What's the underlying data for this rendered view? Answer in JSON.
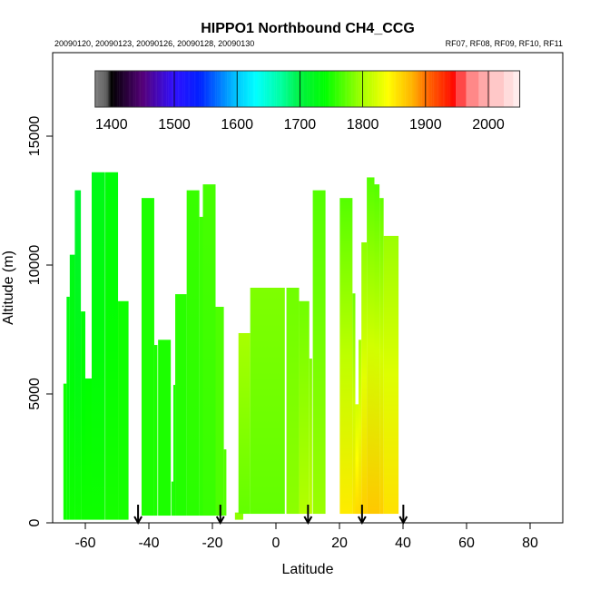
{
  "chart_data": {
    "type": "heatmap",
    "title": "HIPPO1 Northbound CH4_CCG",
    "subtitle_left": "20090120, 20090123, 20090126, 20090128, 20090130",
    "subtitle_right": "RF07, RF08, RF09, RF10, RF11",
    "xlabel": "Latitude",
    "ylabel": "Altitude (m)",
    "xlim": [
      -70,
      90
    ],
    "ylim": [
      0,
      18200
    ],
    "x_ticks": [
      "-60",
      "-40",
      "-20",
      "0",
      "20",
      "40",
      "60",
      "80"
    ],
    "x_tick_values": [
      -60,
      -40,
      -20,
      0,
      20,
      40,
      60,
      80
    ],
    "y_ticks": [
      "0",
      "5000",
      "10000",
      "15000"
    ],
    "y_tick_values": [
      0,
      5000,
      10000,
      15000
    ],
    "colorbar": {
      "range": [
        1374,
        2050
      ],
      "ticks": [
        "1400",
        "1500",
        "1600",
        "1700",
        "1800",
        "1900",
        "2000"
      ],
      "tick_values": [
        1400,
        1500,
        1600,
        1700,
        1800,
        1900,
        2000
      ],
      "stops": [
        [
          1374,
          "#808080"
        ],
        [
          1392,
          "#606060"
        ],
        [
          1400,
          "#000000"
        ],
        [
          1450,
          "#55007a"
        ],
        [
          1500,
          "#3010ff"
        ],
        [
          1540,
          "#0020ff"
        ],
        [
          1600,
          "#00c8ff"
        ],
        [
          1630,
          "#00ffff"
        ],
        [
          1670,
          "#00ffa0"
        ],
        [
          1700,
          "#00f040"
        ],
        [
          1740,
          "#00ff00"
        ],
        [
          1800,
          "#a8ff00"
        ],
        [
          1840,
          "#ffff00"
        ],
        [
          1880,
          "#ffb000"
        ],
        [
          1900,
          "#ff7000"
        ],
        [
          1948,
          "#ff0000"
        ]
      ],
      "blocks": [
        [
          1948,
          1965,
          "#ff4848"
        ],
        [
          1965,
          1985,
          "#ff8888"
        ],
        [
          1985,
          2003,
          "#ffa8a8"
        ],
        [
          2003,
          2025,
          "#ffc8c8"
        ],
        [
          2025,
          2040,
          "#ffdcdc"
        ],
        [
          2040,
          2050,
          "#ffecec"
        ]
      ]
    },
    "columns": [
      [
        -66.9,
        -65.9,
        5400,
        120,
        1745,
        1745
      ],
      [
        -65.9,
        -64.9,
        8770,
        120,
        1730,
        1745
      ],
      [
        -64.9,
        -63.3,
        10400,
        120,
        1725,
        1745
      ],
      [
        -63.3,
        -61.4,
        12900,
        120,
        1710,
        1745
      ],
      [
        -61.4,
        -60.0,
        8200,
        120,
        1735,
        1745
      ],
      [
        -60.0,
        -58.0,
        5600,
        120,
        1740,
        1745
      ],
      [
        -58.0,
        -53.8,
        13600,
        120,
        1725,
        1745
      ],
      [
        -53.7,
        -49.7,
        13600,
        120,
        1735,
        1748
      ],
      [
        -49.7,
        -46.4,
        8600,
        120,
        1745,
        1748
      ],
      [
        -42.3,
        -38.3,
        12600,
        280,
        1750,
        1750
      ],
      [
        -38.3,
        -37.3,
        6900,
        280,
        1750,
        1750
      ],
      [
        -37.1,
        -33.1,
        7100,
        280,
        1750,
        1750
      ],
      [
        -32.9,
        -32.3,
        1600,
        280,
        1750,
        1750
      ],
      [
        -32.3,
        -31.7,
        5350,
        280,
        1750,
        1750
      ],
      [
        -31.7,
        -28.1,
        8870,
        280,
        1755,
        1752
      ],
      [
        -28.1,
        -24.1,
        12900,
        280,
        1760,
        1755
      ],
      [
        -24.1,
        -23.0,
        11870,
        280,
        1762,
        1757
      ],
      [
        -23.0,
        -19.0,
        13130,
        280,
        1765,
        1760
      ],
      [
        -19.0,
        -16.4,
        8380,
        280,
        1768,
        1768
      ],
      [
        -16.4,
        -15.6,
        2850,
        280,
        1770,
        1770
      ],
      [
        -12.9,
        -10.3,
        400,
        120,
        1790,
        1790
      ],
      [
        -11.8,
        -8.1,
        7360,
        350,
        1800,
        1775
      ],
      [
        -8.1,
        2.8,
        9120,
        350,
        1785,
        1775
      ],
      [
        3.3,
        7.3,
        9120,
        350,
        1780,
        1790
      ],
      [
        7.3,
        10.5,
        8600,
        350,
        1780,
        1805
      ],
      [
        10.5,
        11.4,
        6370,
        350,
        1785,
        1810
      ],
      [
        11.6,
        15.6,
        12900,
        350,
        1770,
        1795
      ],
      [
        20.1,
        24.1,
        12600,
        350,
        1770,
        1850
      ],
      [
        24.1,
        25.0,
        8900,
        350,
        1780,
        1855
      ],
      [
        25.0,
        26.0,
        4600,
        350,
        1820,
        1860
      ],
      [
        26.0,
        26.9,
        7100,
        350,
        1800,
        1860
      ],
      [
        26.9,
        28.6,
        10880,
        350,
        1790,
        1865
      ],
      [
        28.6,
        31.0,
        13400,
        350,
        1770,
        1868
      ],
      [
        31.0,
        32.6,
        13130,
        350,
        1770,
        1868
      ],
      [
        32.6,
        33.9,
        12600,
        350,
        1775,
        1865
      ],
      [
        33.9,
        38.6,
        11130,
        350,
        1795,
        1855
      ]
    ],
    "flight_markers_latitude": [
      -43.4,
      -17.5,
      10.1,
      27.1,
      40.1
    ]
  }
}
